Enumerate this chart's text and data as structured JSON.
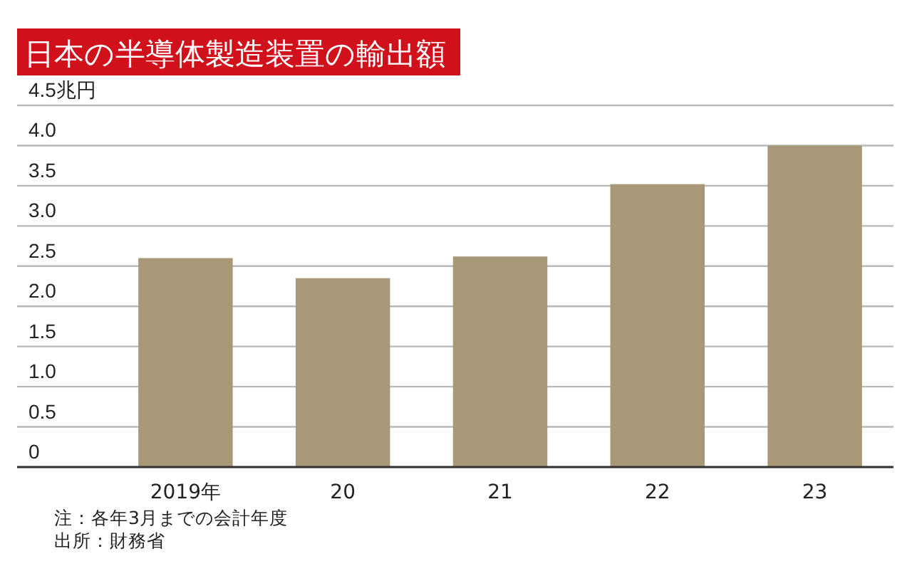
{
  "chart_data": {
    "type": "bar",
    "title": "日本の半導体製造装置の輸出額",
    "categories": [
      "2019年",
      "20",
      "21",
      "22",
      "23"
    ],
    "values": [
      2.6,
      2.35,
      2.62,
      3.52,
      4.0
    ],
    "color": "#a89877",
    "ylim": [
      0,
      4.5
    ],
    "yticks": [
      0,
      0.5,
      {
        "value": 1,
        "label": "1.0"
      },
      1.5,
      {
        "value": 2,
        "label": "2.0"
      },
      2.5,
      {
        "value": 3,
        "label": "3.0"
      },
      3.5,
      {
        "value": 4,
        "label": "4.0"
      },
      {
        "value": 4.5,
        "label": "4.5兆円"
      }
    ],
    "grid": "y",
    "annotations": [
      "注：各年3月までの会計年度",
      "出所：財務省"
    ]
  }
}
